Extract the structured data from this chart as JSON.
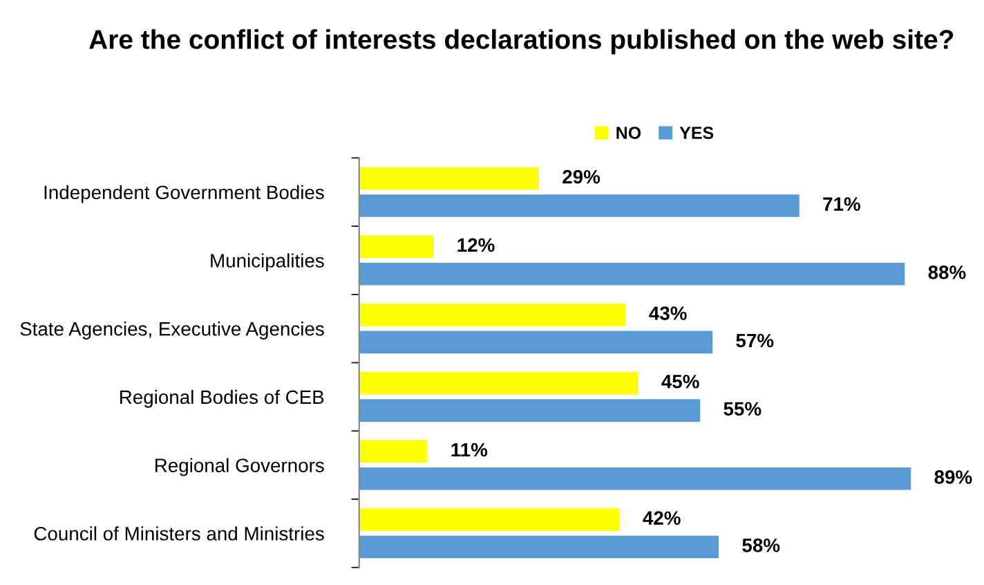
{
  "chart_data": {
    "type": "bar",
    "orientation": "horizontal",
    "title": "Are the conflict of interests declarations published on the web site?",
    "categories": [
      "Independent Government Bodies",
      "Municipalities",
      "State Agencies, Executive Agencies",
      "Regional Bodies of CEB",
      "Regional Governors",
      "Council of Ministers and Ministries"
    ],
    "series": [
      {
        "name": "NO",
        "color": "#ffff00",
        "values": [
          29,
          12,
          43,
          45,
          11,
          42
        ],
        "value_labels": [
          "29%",
          "12%",
          "43%",
          "45%",
          "11%",
          "42%"
        ]
      },
      {
        "name": "YES",
        "color": "#5b9bd5",
        "values": [
          71,
          88,
          57,
          55,
          89,
          58
        ],
        "value_labels": [
          "71%",
          "88%",
          "57%",
          "55%",
          "89%",
          "58%"
        ]
      }
    ],
    "legend": "top",
    "grid": false
  }
}
